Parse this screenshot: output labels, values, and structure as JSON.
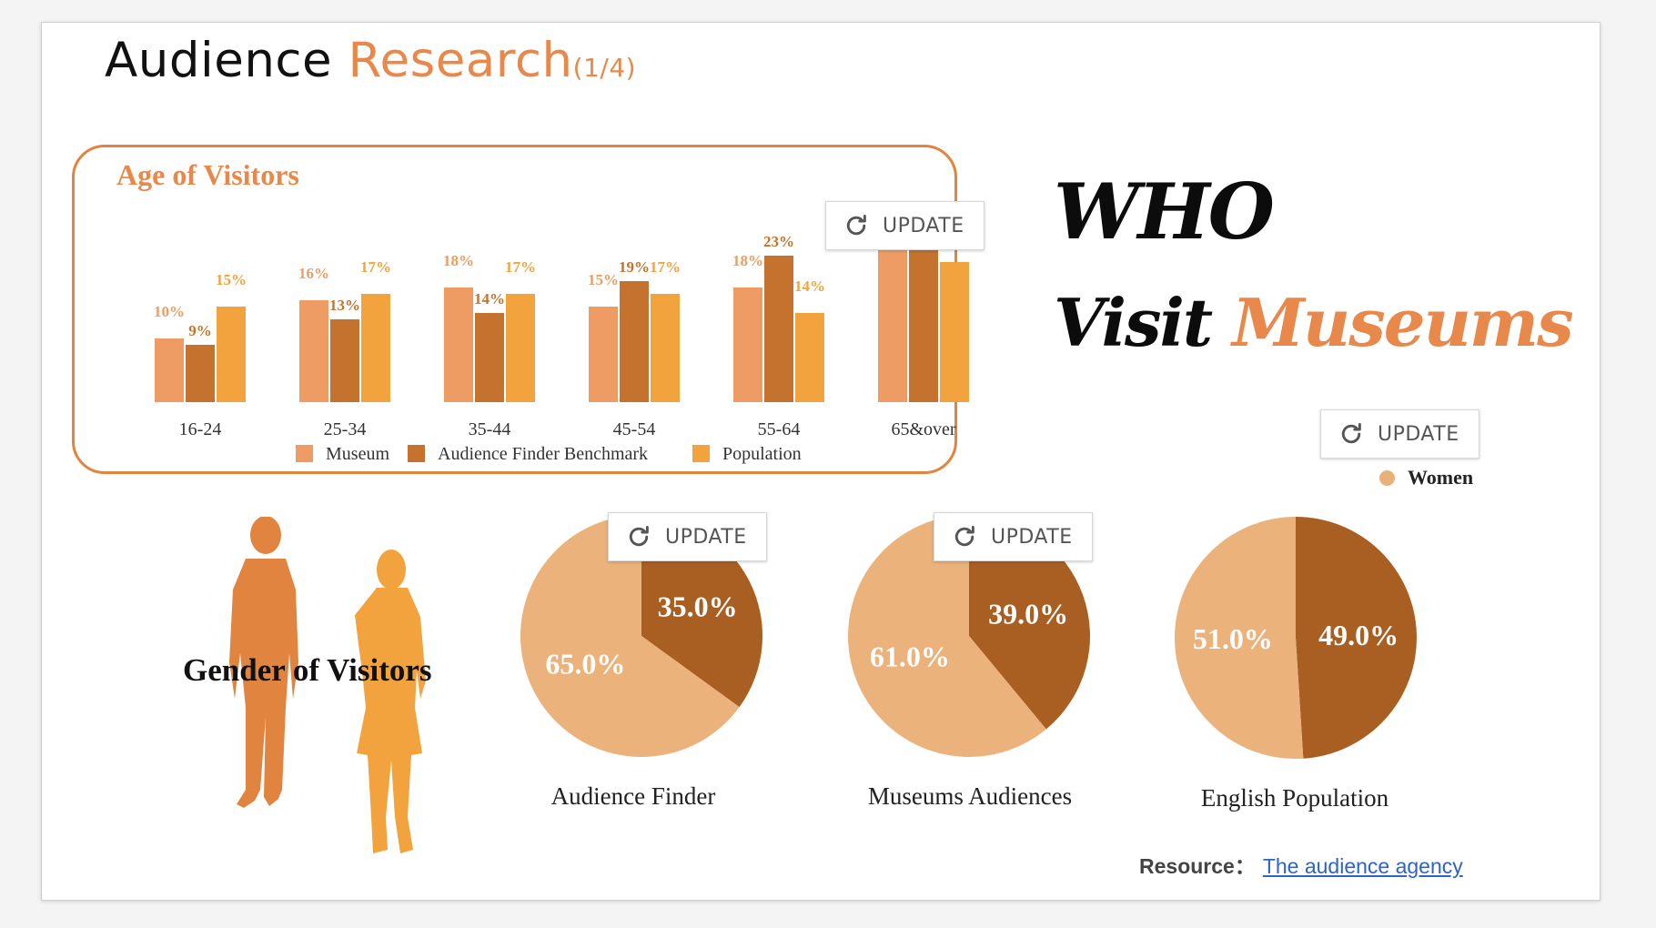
{
  "slide": {
    "title_main": "Audience",
    "title_accent": "Research",
    "title_suffix": "(1/4)",
    "who": "WHO",
    "visit": "Visit",
    "museums": "Museums",
    "women_legend": "Women",
    "gender_title": "Gender of Visitors",
    "resource_label": "Resource：",
    "resource_link": "The audience agency",
    "update_label": "UPDATE"
  },
  "colors": {
    "accent": "#e8884a",
    "museum": "#ee9c63",
    "benchmark": "#c4722e",
    "population": "#f2a33e",
    "pie_light": "#ebb37b",
    "pie_dark": "#a95f22"
  },
  "chart_data": [
    {
      "type": "bar",
      "title": "Age of Visitors",
      "categories": [
        "16-24",
        "25-34",
        "35-44",
        "45-54",
        "55-64",
        "65&over"
      ],
      "series": [
        {
          "name": "Museum",
          "values": [
            10,
            16,
            18,
            15,
            18,
            26
          ],
          "labels": [
            "10%",
            "16%",
            "18%",
            "15%",
            "18%",
            ""
          ]
        },
        {
          "name": "Audience Finder Benchmark",
          "values": [
            9,
            13,
            14,
            19,
            23,
            25
          ],
          "labels": [
            "9%",
            "13%",
            "14%",
            "19%",
            "23%",
            ""
          ]
        },
        {
          "name": "Population",
          "values": [
            15,
            17,
            17,
            17,
            14,
            22
          ],
          "labels": [
            "15%",
            "17%",
            "17%",
            "17%",
            "14%",
            ""
          ]
        }
      ],
      "legend": "bottom"
    },
    {
      "type": "pie",
      "title": "Audience Finder",
      "slices": [
        {
          "name": "Women",
          "value": 65.0,
          "label": "65.0%"
        },
        {
          "name": "",
          "value": 35.0,
          "label": "35.0%"
        }
      ]
    },
    {
      "type": "pie",
      "title": "Museums Audiences",
      "slices": [
        {
          "name": "Women",
          "value": 61.0,
          "label": "61.0%"
        },
        {
          "name": "",
          "value": 39.0,
          "label": "39.0%"
        }
      ]
    },
    {
      "type": "pie",
      "title": "English Population",
      "slices": [
        {
          "name": "Women",
          "value": 51.0,
          "label": "51.0%"
        },
        {
          "name": "",
          "value": 49.0,
          "label": "49.0%"
        }
      ]
    }
  ]
}
